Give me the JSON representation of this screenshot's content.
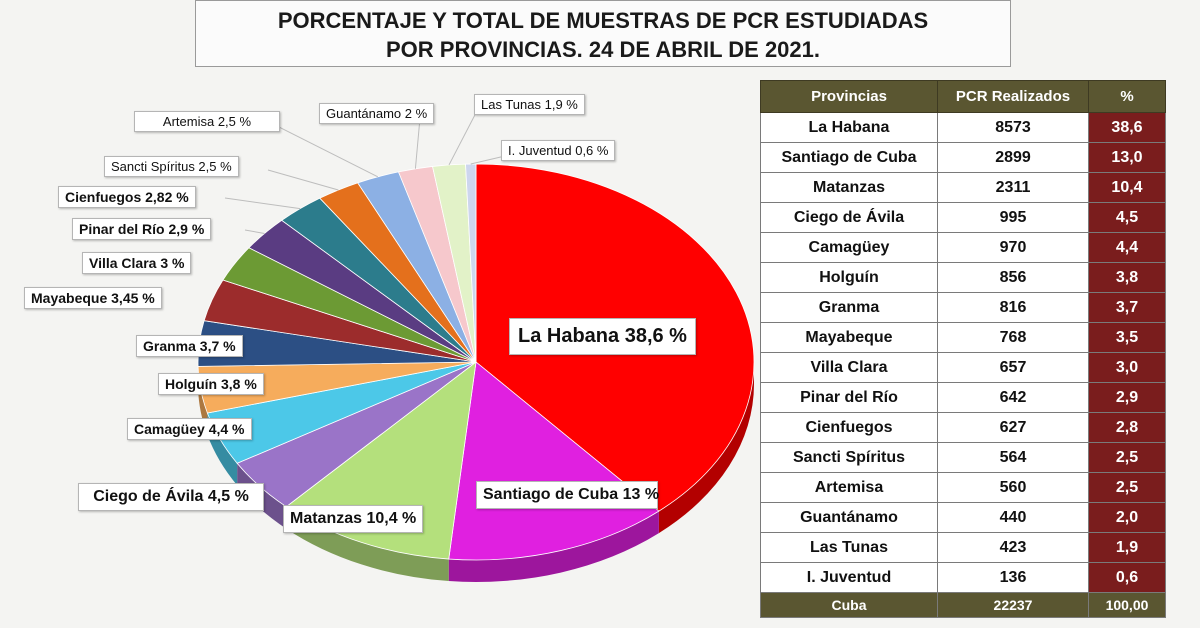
{
  "title": {
    "line1": "PORCENTAJE Y TOTAL DE MUESTRAS DE PCR ESTUDIADAS",
    "line2": "POR PROVINCIAS. 24 DE ABRIL DE 2021."
  },
  "chart_data": {
    "type": "pie",
    "slices": [
      {
        "name": "La Habana",
        "value": 38.6,
        "label": "La Habana 38,6 %",
        "color": "#ff0000"
      },
      {
        "name": "Santiago de Cuba",
        "value": 13.0,
        "label": "Santiago de Cuba 13 %",
        "color": "#e020e0"
      },
      {
        "name": "Matanzas",
        "value": 10.4,
        "label": "Matanzas 10,4 %",
        "color": "#b4e07c"
      },
      {
        "name": "Ciego de Ávila",
        "value": 4.5,
        "label": "Ciego de Ávila 4,5 %",
        "color": "#9a74c8"
      },
      {
        "name": "Camagüey",
        "value": 4.4,
        "label": "Camagüey 4,4 %",
        "color": "#4cc8e8"
      },
      {
        "name": "Holguín",
        "value": 3.8,
        "label": "Holguín 3,8 %",
        "color": "#f6ac5c"
      },
      {
        "name": "Granma",
        "value": 3.7,
        "label": "Granma 3,7 %",
        "color": "#2c4f84"
      },
      {
        "name": "Mayabeque",
        "value": 3.45,
        "label": "Mayabeque 3,45 %",
        "color": "#9c2c2c"
      },
      {
        "name": "Villa Clara",
        "value": 3.0,
        "label": "Villa Clara 3 %",
        "color": "#6c9a34"
      },
      {
        "name": "Pinar del Río",
        "value": 2.9,
        "label": "Pinar del Río 2,9 %",
        "color": "#5a3c82"
      },
      {
        "name": "Cienfuegos",
        "value": 2.82,
        "label": "Cienfuegos 2,82 %",
        "color": "#2c7c8c"
      },
      {
        "name": "Sancti Spíritus",
        "value": 2.5,
        "label": "Sancti Spíritus 2,5 %",
        "color": "#e4701c"
      },
      {
        "name": "Artemisa",
        "value": 2.5,
        "label": "Artemisa 2,5 %",
        "color": "#8cb0e4"
      },
      {
        "name": "Guantánamo",
        "value": 2.0,
        "label": "Guantánamo 2 %",
        "color": "#f6c8cc"
      },
      {
        "name": "Las Tunas",
        "value": 1.9,
        "label": "Las Tunas 1,9 %",
        "color": "#e2f2c8"
      },
      {
        "name": "I. Juventud",
        "value": 0.6,
        "label": "I. Juventud 0,6 %",
        "color": "#cdd6ee"
      }
    ]
  },
  "table": {
    "headers": [
      "Provincias",
      "PCR Realizados",
      "%"
    ],
    "rows": [
      {
        "province": "La Habana",
        "pcr": "8573",
        "pct": "38,6"
      },
      {
        "province": "Santiago de Cuba",
        "pcr": "2899",
        "pct": "13,0"
      },
      {
        "province": "Matanzas",
        "pcr": "2311",
        "pct": "10,4"
      },
      {
        "province": "Ciego de Ávila",
        "pcr": "995",
        "pct": "4,5"
      },
      {
        "province": "Camagüey",
        "pcr": "970",
        "pct": "4,4"
      },
      {
        "province": "Holguín",
        "pcr": "856",
        "pct": "3,8"
      },
      {
        "province": "Granma",
        "pcr": "816",
        "pct": "3,7"
      },
      {
        "province": "Mayabeque",
        "pcr": "768",
        "pct": "3,5"
      },
      {
        "province": "Villa Clara",
        "pcr": "657",
        "pct": "3,0"
      },
      {
        "province": "Pinar del Río",
        "pcr": "642",
        "pct": "2,9"
      },
      {
        "province": "Cienfuegos",
        "pcr": "627",
        "pct": "2,8"
      },
      {
        "province": "Sancti Spíritus",
        "pcr": "564",
        "pct": "2,5"
      },
      {
        "province": "Artemisa",
        "pcr": "560",
        "pct": "2,5"
      },
      {
        "province": "Guantánamo",
        "pcr": "440",
        "pct": "2,0"
      },
      {
        "province": "Las Tunas",
        "pcr": "423",
        "pct": "1,9"
      },
      {
        "province": "I. Juventud",
        "pcr": "136",
        "pct": "0,6"
      }
    ],
    "total": {
      "province": "Cuba",
      "pcr": "22237",
      "pct": "100,00"
    }
  }
}
